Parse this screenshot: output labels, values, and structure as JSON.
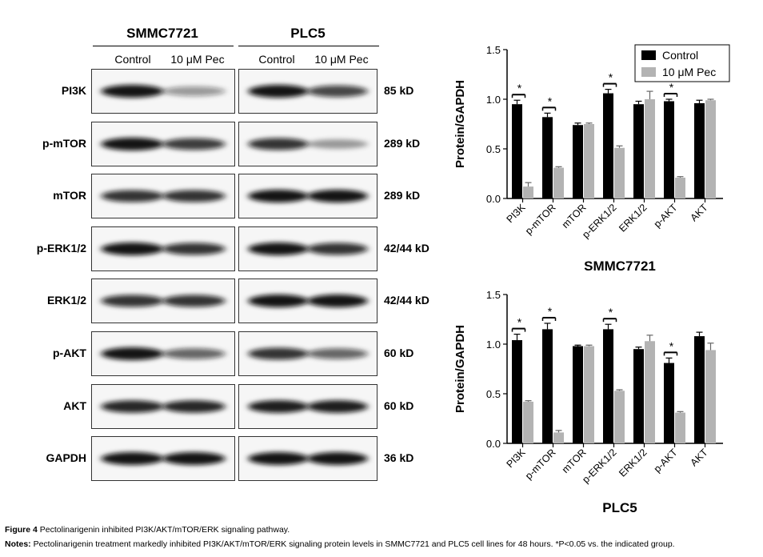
{
  "blot": {
    "lines": [
      {
        "name": "SMMC7721",
        "conditions": [
          "Control",
          "10 μM Pec"
        ]
      },
      {
        "name": "PLC5",
        "conditions": [
          "Control",
          "10 μM Pec"
        ]
      }
    ],
    "rows": [
      {
        "label": "PI3K",
        "kd": "85 kD",
        "intensity": [
          [
            1.0,
            0.35
          ],
          [
            1.0,
            0.75
          ]
        ]
      },
      {
        "label": "p-mTOR",
        "kd": "289 kD",
        "intensity": [
          [
            1.0,
            0.8
          ],
          [
            0.85,
            0.3
          ]
        ]
      },
      {
        "label": "mTOR",
        "kd": "289 kD",
        "intensity": [
          [
            0.85,
            0.85
          ],
          [
            1.0,
            1.0
          ]
        ]
      },
      {
        "label": "p-ERK1/2",
        "kd": "42/44 kD",
        "intensity": [
          [
            1.0,
            0.85
          ],
          [
            1.0,
            0.85
          ]
        ]
      },
      {
        "label": "ERK1/2",
        "kd": "42/44 kD",
        "intensity": [
          [
            0.85,
            0.85
          ],
          [
            1.0,
            1.0
          ]
        ]
      },
      {
        "label": "p-AKT",
        "kd": "60 kD",
        "intensity": [
          [
            1.0,
            0.6
          ],
          [
            0.85,
            0.6
          ]
        ]
      },
      {
        "label": "AKT",
        "kd": "60 kD",
        "intensity": [
          [
            0.9,
            0.9
          ],
          [
            0.95,
            0.95
          ]
        ]
      },
      {
        "label": "GAPDH",
        "kd": "36 kD",
        "intensity": [
          [
            1.0,
            1.0
          ],
          [
            1.0,
            1.0
          ]
        ]
      }
    ]
  },
  "chart_data": [
    {
      "type": "bar",
      "title": "SMMC7721",
      "ylabel": "Protein/GAPDH",
      "xlabel": "",
      "ylim": [
        0,
        1.5
      ],
      "yticks": [
        "0.0",
        "0.5",
        "1.0",
        "1.5"
      ],
      "categories": [
        "PI3K",
        "p-mTOR",
        "mTOR",
        "p-ERK1/2",
        "ERK1/2",
        "p-AKT",
        "AKT"
      ],
      "series": [
        {
          "name": "Control",
          "color": "#000000",
          "values": [
            0.95,
            0.82,
            0.74,
            1.06,
            0.95,
            0.98,
            0.96
          ],
          "errors": [
            0.04,
            0.04,
            0.02,
            0.04,
            0.03,
            0.02,
            0.03
          ]
        },
        {
          "name": "10 μM Pec",
          "color": "#b3b3b3",
          "values": [
            0.12,
            0.31,
            0.75,
            0.51,
            1.0,
            0.21,
            0.99
          ],
          "errors": [
            0.04,
            0.01,
            0.01,
            0.02,
            0.08,
            0.01,
            0.01
          ]
        }
      ],
      "significance": [
        {
          "category": "PI3K",
          "label": "*"
        },
        {
          "category": "p-mTOR",
          "label": "*"
        },
        {
          "category": "p-ERK1/2",
          "label": "*"
        },
        {
          "category": "p-AKT",
          "label": "*"
        }
      ],
      "legend": "top-right",
      "grid": false
    },
    {
      "type": "bar",
      "title": "PLC5",
      "ylabel": "Protein/GAPDH",
      "xlabel": "",
      "ylim": [
        0,
        1.5
      ],
      "yticks": [
        "0.0",
        "0.5",
        "1.0",
        "1.5"
      ],
      "categories": [
        "PI3K",
        "p-mTOR",
        "mTOR",
        "p-ERK1/2",
        "ERK1/2",
        "p-AKT",
        "AKT"
      ],
      "series": [
        {
          "name": "Control",
          "color": "#000000",
          "values": [
            1.04,
            1.15,
            0.98,
            1.15,
            0.95,
            0.81,
            1.08
          ],
          "errors": [
            0.06,
            0.06,
            0.01,
            0.05,
            0.02,
            0.05,
            0.04
          ]
        },
        {
          "name": "10 μM Pec",
          "color": "#b3b3b3",
          "values": [
            0.42,
            0.11,
            0.98,
            0.53,
            1.03,
            0.31,
            0.94
          ],
          "errors": [
            0.01,
            0.02,
            0.01,
            0.01,
            0.06,
            0.01,
            0.07
          ]
        }
      ],
      "significance": [
        {
          "category": "PI3K",
          "label": "*"
        },
        {
          "category": "p-mTOR",
          "label": "*"
        },
        {
          "category": "p-ERK1/2",
          "label": "*"
        },
        {
          "category": "p-AKT",
          "label": "*"
        }
      ],
      "legend": "none",
      "grid": false
    }
  ],
  "caption": {
    "fig_label": "Figure 4",
    "fig_text": " Pectolinarigenin inhibited PI3K/AKT/mTOR/ERK signaling pathway.",
    "notes_label": "Notes:",
    "notes_text": " Pectolinarigenin treatment markedly inhibited PI3K/AKT/mTOR/ERK signaling protein levels in SMMC7721 and PLC5 cell lines for 48 hours. *P<0.05 vs. the indicated group."
  }
}
